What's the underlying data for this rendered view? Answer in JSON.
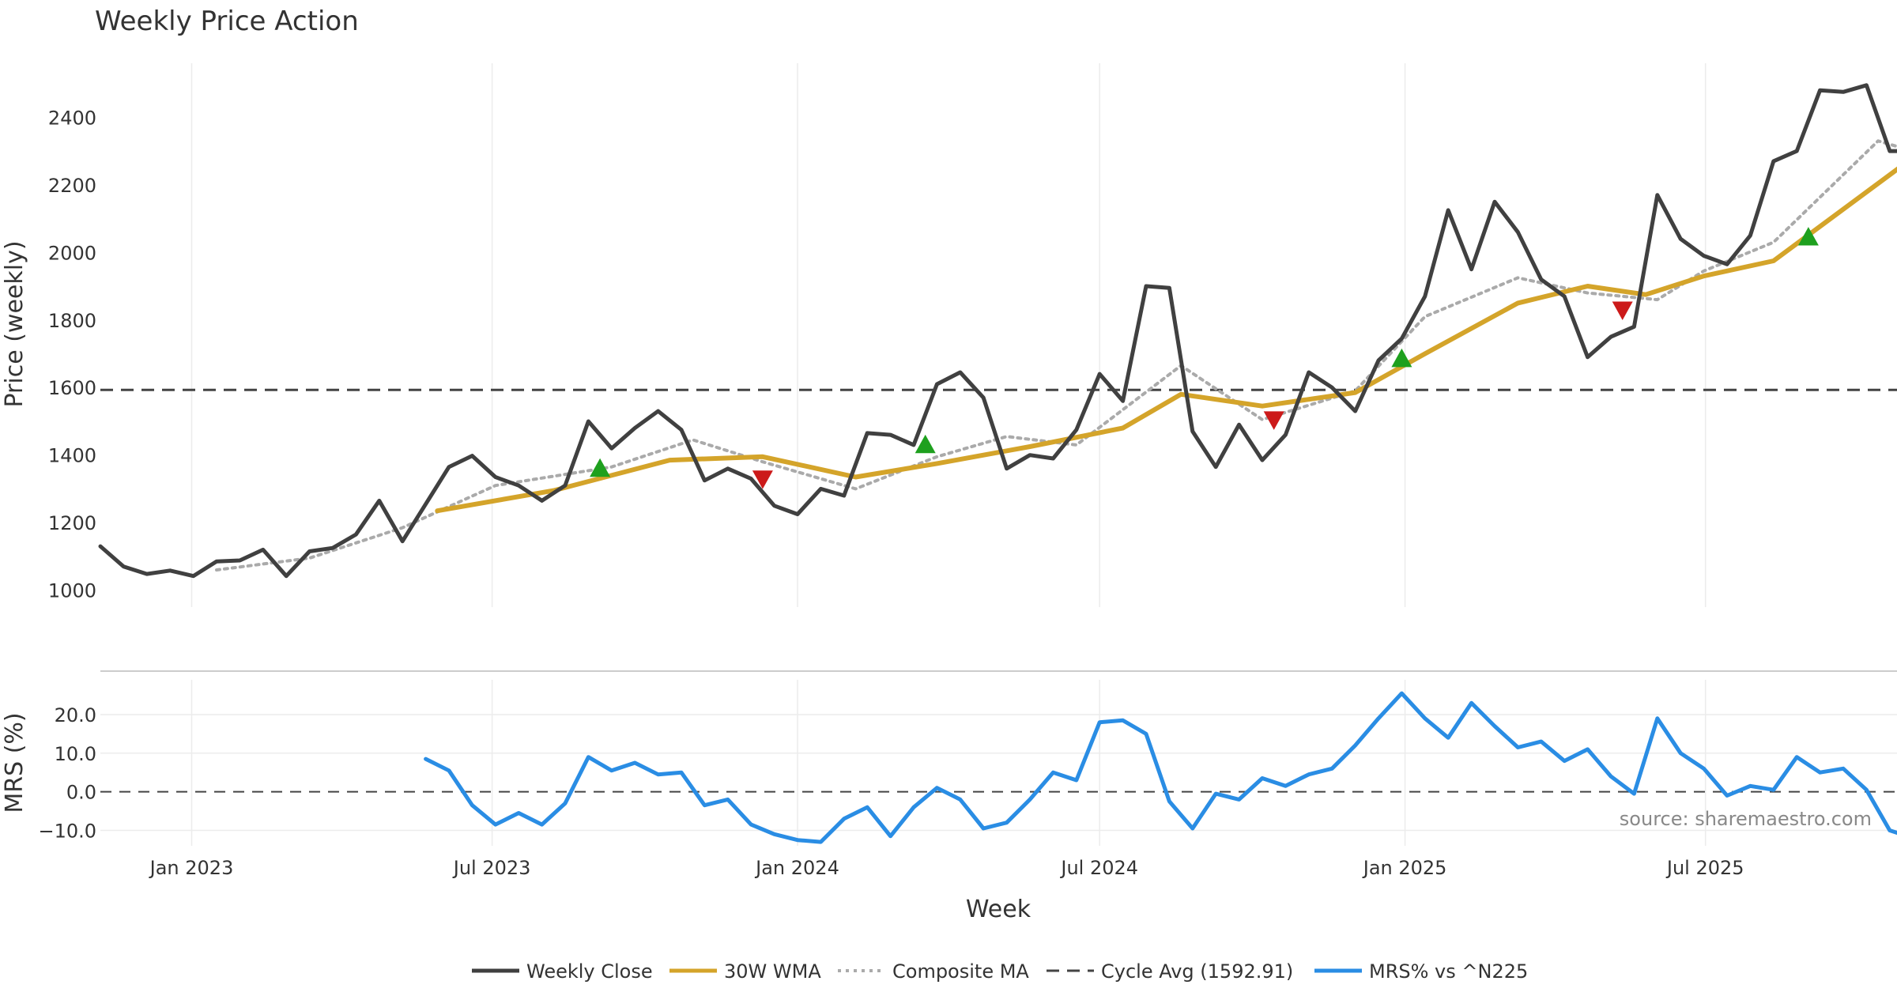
{
  "colors": {
    "weekly_close": "#404040",
    "wma": "#d4a42a",
    "composite_ma": "#aaaaaa",
    "cycle_avg": "#444444",
    "mrs": "#2a8de4",
    "buy_marker": "#1ea01e",
    "sell_marker": "#cc1a1a",
    "grid": "#ececec"
  },
  "chart_data": {
    "type": "line",
    "title": "Weekly Price Action",
    "source": "source: sharemaestro.com",
    "xlabel": "Week",
    "x_ticks": [
      "Jan 2023",
      "Jul 2023",
      "Jan 2024",
      "Jul 2024",
      "Jan 2025",
      "Jul 2025"
    ],
    "x_range": [
      "2022-11-07",
      "2025-10-27"
    ],
    "panels": [
      {
        "name": "price",
        "ylabel": "Price (weekly)",
        "ylim": [
          950,
          2560
        ],
        "y_ticks": [
          1000,
          1200,
          1400,
          1600,
          1800,
          2000,
          2200,
          2400
        ],
        "grid": true
      },
      {
        "name": "mrs",
        "ylabel": "MRS (%)",
        "ylim": [
          -14,
          29
        ],
        "y_ticks": [
          "20.0",
          "10.0",
          "0.0",
          "−10.0"
        ],
        "y_tick_values": [
          20,
          10,
          0,
          -10
        ],
        "zero_line": 0,
        "grid": true
      }
    ],
    "legend": [
      "Weekly Close",
      "30W WMA",
      "Composite MA",
      "Cycle Avg (1592.91)",
      "MRS% vs ^N225"
    ],
    "legend_position": "bottom-center",
    "cycle_avg": 1592.91,
    "series": [
      {
        "name": "Weekly Close",
        "panel": "price",
        "style": "solid",
        "points": [
          [
            "2022-11-07",
            1130
          ],
          [
            "2022-11-21",
            1070
          ],
          [
            "2022-12-05",
            1048
          ],
          [
            "2022-12-19",
            1058
          ],
          [
            "2023-01-02",
            1042
          ],
          [
            "2023-01-16",
            1085
          ],
          [
            "2023-01-30",
            1088
          ],
          [
            "2023-02-13",
            1120
          ],
          [
            "2023-02-27",
            1042
          ],
          [
            "2023-03-13",
            1115
          ],
          [
            "2023-03-27",
            1125
          ],
          [
            "2023-04-10",
            1165
          ],
          [
            "2023-04-24",
            1265
          ],
          [
            "2023-05-08",
            1145
          ],
          [
            "2023-05-22",
            1255
          ],
          [
            "2023-06-05",
            1365
          ],
          [
            "2023-06-19",
            1398
          ],
          [
            "2023-07-03",
            1335
          ],
          [
            "2023-07-17",
            1310
          ],
          [
            "2023-07-31",
            1265
          ],
          [
            "2023-08-14",
            1310
          ],
          [
            "2023-08-28",
            1500
          ],
          [
            "2023-09-11",
            1420
          ],
          [
            "2023-09-25",
            1480
          ],
          [
            "2023-10-09",
            1530
          ],
          [
            "2023-10-23",
            1475
          ],
          [
            "2023-11-06",
            1325
          ],
          [
            "2023-11-20",
            1360
          ],
          [
            "2023-12-04",
            1330
          ],
          [
            "2023-12-18",
            1250
          ],
          [
            "2024-01-01",
            1225
          ],
          [
            "2024-01-15",
            1300
          ],
          [
            "2024-01-29",
            1280
          ],
          [
            "2024-02-12",
            1465
          ],
          [
            "2024-02-26",
            1460
          ],
          [
            "2024-03-11",
            1430
          ],
          [
            "2024-03-25",
            1610
          ],
          [
            "2024-04-08",
            1645
          ],
          [
            "2024-04-22",
            1570
          ],
          [
            "2024-05-06",
            1360
          ],
          [
            "2024-05-20",
            1400
          ],
          [
            "2024-06-03",
            1390
          ],
          [
            "2024-06-17",
            1475
          ],
          [
            "2024-07-01",
            1640
          ],
          [
            "2024-07-15",
            1560
          ],
          [
            "2024-07-29",
            1900
          ],
          [
            "2024-08-12",
            1895
          ],
          [
            "2024-08-26",
            1470
          ],
          [
            "2024-09-09",
            1365
          ],
          [
            "2024-09-23",
            1490
          ],
          [
            "2024-10-07",
            1385
          ],
          [
            "2024-10-21",
            1460
          ],
          [
            "2024-11-04",
            1645
          ],
          [
            "2024-11-18",
            1600
          ],
          [
            "2024-12-02",
            1530
          ],
          [
            "2024-12-16",
            1680
          ],
          [
            "2024-12-30",
            1745
          ],
          [
            "2025-01-13",
            1870
          ],
          [
            "2025-01-27",
            2125
          ],
          [
            "2025-02-10",
            1950
          ],
          [
            "2025-02-24",
            2150
          ],
          [
            "2025-03-10",
            2060
          ],
          [
            "2025-03-24",
            1920
          ],
          [
            "2025-04-07",
            1870
          ],
          [
            "2025-04-21",
            1690
          ],
          [
            "2025-05-05",
            1750
          ],
          [
            "2025-05-19",
            1780
          ],
          [
            "2025-06-02",
            2170
          ],
          [
            "2025-06-16",
            2040
          ],
          [
            "2025-06-30",
            1990
          ],
          [
            "2025-07-14",
            1965
          ],
          [
            "2025-07-28",
            2050
          ],
          [
            "2025-08-11",
            2270
          ],
          [
            "2025-08-25",
            2300
          ],
          [
            "2025-09-08",
            2480
          ],
          [
            "2025-09-22",
            2475
          ],
          [
            "2025-10-06",
            2495
          ],
          [
            "2025-10-20",
            2300
          ],
          [
            "2025-10-27",
            2300
          ]
        ]
      },
      {
        "name": "30W WMA",
        "panel": "price",
        "style": "solid",
        "points": [
          [
            "2023-05-29",
            1235
          ],
          [
            "2023-08-07",
            1295
          ],
          [
            "2023-10-16",
            1385
          ],
          [
            "2023-12-11",
            1395
          ],
          [
            "2024-02-05",
            1335
          ],
          [
            "2024-03-25",
            1375
          ],
          [
            "2024-05-20",
            1425
          ],
          [
            "2024-07-15",
            1480
          ],
          [
            "2024-08-19",
            1580
          ],
          [
            "2024-10-07",
            1545
          ],
          [
            "2024-12-02",
            1585
          ],
          [
            "2025-01-13",
            1700
          ],
          [
            "2025-03-10",
            1850
          ],
          [
            "2025-04-21",
            1900
          ],
          [
            "2025-05-26",
            1875
          ],
          [
            "2025-06-30",
            1930
          ],
          [
            "2025-08-11",
            1975
          ],
          [
            "2025-10-27",
            2255
          ]
        ]
      },
      {
        "name": "Composite MA",
        "panel": "price",
        "style": "dotted",
        "points": [
          [
            "2023-01-16",
            1060
          ],
          [
            "2023-03-13",
            1095
          ],
          [
            "2023-05-08",
            1185
          ],
          [
            "2023-07-03",
            1310
          ],
          [
            "2023-09-11",
            1365
          ],
          [
            "2023-10-30",
            1445
          ],
          [
            "2023-12-11",
            1380
          ],
          [
            "2024-02-05",
            1300
          ],
          [
            "2024-03-25",
            1395
          ],
          [
            "2024-05-06",
            1455
          ],
          [
            "2024-06-17",
            1430
          ],
          [
            "2024-08-19",
            1665
          ],
          [
            "2024-10-07",
            1505
          ],
          [
            "2024-12-02",
            1590
          ],
          [
            "2025-01-13",
            1810
          ],
          [
            "2025-03-10",
            1925
          ],
          [
            "2025-04-21",
            1880
          ],
          [
            "2025-06-02",
            1860
          ],
          [
            "2025-06-30",
            1945
          ],
          [
            "2025-08-11",
            2030
          ],
          [
            "2025-10-13",
            2330
          ],
          [
            "2025-10-27",
            2310
          ]
        ]
      },
      {
        "name": "MRS% vs ^N225",
        "panel": "mrs",
        "style": "solid",
        "points": [
          [
            "2023-05-22",
            8.5
          ],
          [
            "2023-06-05",
            5.5
          ],
          [
            "2023-06-19",
            -3.5
          ],
          [
            "2023-07-03",
            -8.5
          ],
          [
            "2023-07-17",
            -5.5
          ],
          [
            "2023-07-31",
            -8.5
          ],
          [
            "2023-08-14",
            -3.0
          ],
          [
            "2023-08-28",
            9.0
          ],
          [
            "2023-09-11",
            5.5
          ],
          [
            "2023-09-25",
            7.5
          ],
          [
            "2023-10-09",
            4.5
          ],
          [
            "2023-10-23",
            5.0
          ],
          [
            "2023-11-06",
            -3.5
          ],
          [
            "2023-11-20",
            -2.0
          ],
          [
            "2023-12-04",
            -8.5
          ],
          [
            "2023-12-18",
            -11.0
          ],
          [
            "2024-01-01",
            -12.5
          ],
          [
            "2024-01-15",
            -13.0
          ],
          [
            "2024-01-29",
            -7.0
          ],
          [
            "2024-02-12",
            -4.0
          ],
          [
            "2024-02-26",
            -11.5
          ],
          [
            "2024-03-11",
            -4.0
          ],
          [
            "2024-03-25",
            1.0
          ],
          [
            "2024-04-08",
            -2.0
          ],
          [
            "2024-04-22",
            -9.5
          ],
          [
            "2024-05-06",
            -8.0
          ],
          [
            "2024-05-20",
            -2.0
          ],
          [
            "2024-06-03",
            5.0
          ],
          [
            "2024-06-17",
            3.0
          ],
          [
            "2024-07-01",
            18.0
          ],
          [
            "2024-07-15",
            18.5
          ],
          [
            "2024-07-29",
            15.0
          ],
          [
            "2024-08-12",
            -2.5
          ],
          [
            "2024-08-26",
            -9.5
          ],
          [
            "2024-09-09",
            -0.5
          ],
          [
            "2024-09-23",
            -2.0
          ],
          [
            "2024-10-07",
            3.5
          ],
          [
            "2024-10-21",
            1.5
          ],
          [
            "2024-11-04",
            4.5
          ],
          [
            "2024-11-18",
            6.0
          ],
          [
            "2024-12-02",
            12.0
          ],
          [
            "2024-12-16",
            19.0
          ],
          [
            "2024-12-30",
            25.5
          ],
          [
            "2025-01-13",
            19.0
          ],
          [
            "2025-01-27",
            14.0
          ],
          [
            "2025-02-10",
            23.0
          ],
          [
            "2025-02-24",
            17.0
          ],
          [
            "2025-03-10",
            11.5
          ],
          [
            "2025-03-24",
            13.0
          ],
          [
            "2025-04-07",
            8.0
          ],
          [
            "2025-04-21",
            11.0
          ],
          [
            "2025-05-05",
            4.0
          ],
          [
            "2025-05-19",
            -0.5
          ],
          [
            "2025-06-02",
            19.0
          ],
          [
            "2025-06-16",
            10.0
          ],
          [
            "2025-06-30",
            6.0
          ],
          [
            "2025-07-14",
            -1.0
          ],
          [
            "2025-07-28",
            1.5
          ],
          [
            "2025-08-11",
            0.5
          ],
          [
            "2025-08-25",
            9.0
          ],
          [
            "2025-09-08",
            5.0
          ],
          [
            "2025-09-22",
            6.0
          ],
          [
            "2025-10-06",
            0.5
          ],
          [
            "2025-10-20",
            -10.0
          ],
          [
            "2025-10-27",
            -11.0
          ]
        ]
      }
    ],
    "markers": [
      {
        "type": "buy",
        "x": "2023-09-04",
        "y": 1360
      },
      {
        "type": "sell",
        "x": "2023-12-11",
        "y": 1330
      },
      {
        "type": "buy",
        "x": "2024-03-18",
        "y": 1430
      },
      {
        "type": "sell",
        "x": "2024-10-14",
        "y": 1505
      },
      {
        "type": "buy",
        "x": "2024-12-30",
        "y": 1685
      },
      {
        "type": "sell",
        "x": "2025-05-12",
        "y": 1830
      },
      {
        "type": "buy",
        "x": "2025-09-01",
        "y": 2045
      }
    ]
  }
}
